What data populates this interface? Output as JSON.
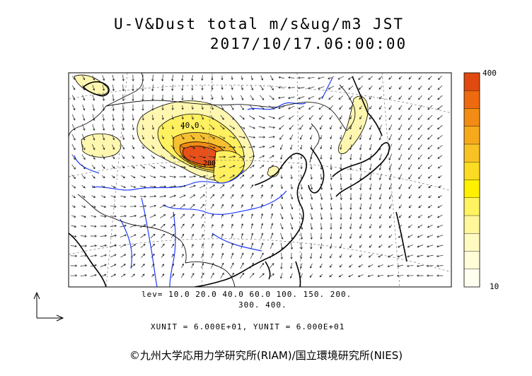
{
  "title_line1": "U-V&Dust total m/s&ug/m3 JST",
  "title_line2": "2017/10/17.06:00:00",
  "legend": {
    "max_label": "400",
    "min_label": "10",
    "colors": [
      "#e04a10",
      "#ee6a10",
      "#f28c14",
      "#f7a91c",
      "#f8c224",
      "#fcdc22",
      "#fff000",
      "#fff460",
      "#fff79a",
      "#fffac0",
      "#fffcd8",
      "#fffff0"
    ]
  },
  "levels_line1": "lev= 10.0 20.0 40.0 60.0 100. 150. 200.",
  "levels_line2": "300. 400.",
  "units_line": "XUNIT = 6.000E+01, YUNIT = 6.000E+01",
  "contour_labels": [
    "40.0",
    "200"
  ],
  "copyright": "©九州大学応用力学研究所(RIAM)/国立環境研究所(NIES)"
}
